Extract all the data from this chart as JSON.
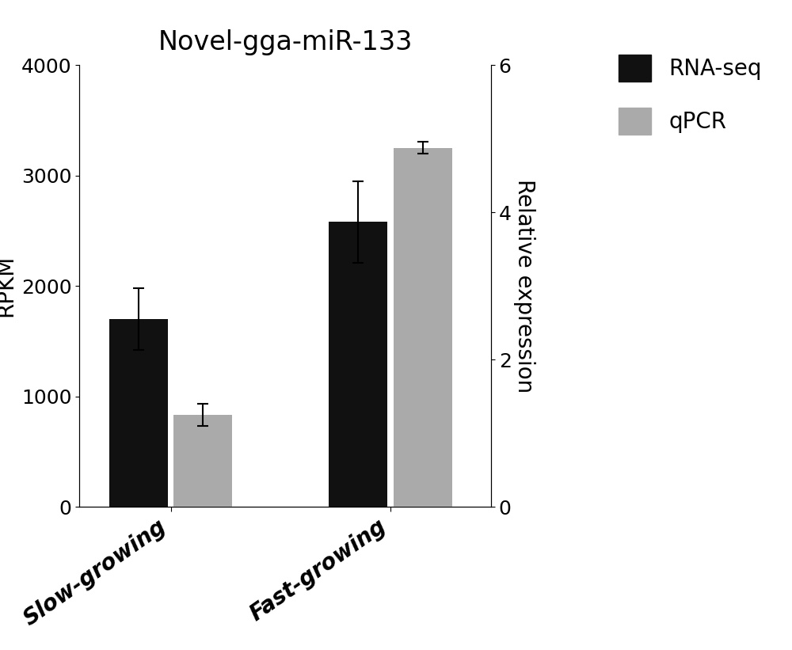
{
  "title": "Novel-gga-miR-133",
  "categories": [
    "Slow-growing",
    "Fast-growing"
  ],
  "rnaseq_values": [
    1700,
    2580
  ],
  "rnaseq_errors": [
    280,
    370
  ],
  "qpcr_values": [
    1.25,
    4.875
  ],
  "qpcr_errors": [
    0.15,
    0.08
  ],
  "bar_color_black": "#111111",
  "bar_color_gray": "#aaaaaa",
  "ylabel_left": "RPKM",
  "ylabel_right": "Relative expression",
  "ylim_left": [
    0,
    4000
  ],
  "ylim_right": [
    0,
    6
  ],
  "yticks_left": [
    0,
    1000,
    2000,
    3000,
    4000
  ],
  "yticks_right": [
    0,
    2,
    4,
    6
  ],
  "legend_labels": [
    "RNA-seq",
    "qPCR"
  ],
  "title_fontsize": 24,
  "label_fontsize": 20,
  "tick_fontsize": 18,
  "legend_fontsize": 20,
  "bar_width": 0.32,
  "figsize": [
    10.0,
    8.21
  ],
  "group_centers": [
    0.55,
    1.75
  ],
  "xlim": [
    0.05,
    2.3
  ]
}
